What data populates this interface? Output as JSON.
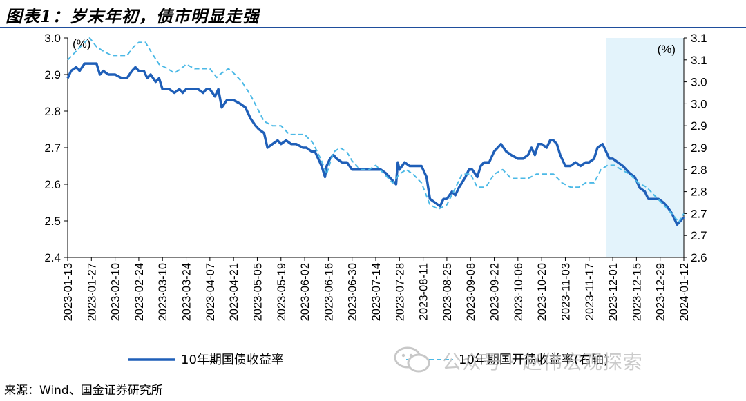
{
  "title": "图表1：岁末年初，债市明显走强",
  "source": "来源：Wind、国金证券研究所",
  "watermark": "公众号 · 赵伟宏观探索",
  "chart_data": {
    "type": "line",
    "left_unit": "(%)",
    "right_unit": "(%)",
    "left_ylim": [
      2.4,
      3.0
    ],
    "right_ylim": [
      2.6,
      3.1
    ],
    "left_ticks": [
      "2.4",
      "2.5",
      "2.6",
      "2.7",
      "2.8",
      "2.9",
      "3.0"
    ],
    "right_ticks": [
      "2.6",
      "2.7",
      "2.7",
      "2.8",
      "2.8",
      "2.9",
      "2.9",
      "3.0",
      "3.0",
      "3.1",
      "3.1"
    ],
    "x_ticks": [
      "2023-01-13",
      "2023-01-27",
      "2023-02-10",
      "2023-02-24",
      "2023-03-10",
      "2023-03-24",
      "2023-04-07",
      "2023-04-21",
      "2023-05-05",
      "2023-05-19",
      "2023-06-02",
      "2023-06-16",
      "2023-06-30",
      "2023-07-14",
      "2023-07-28",
      "2023-08-11",
      "2023-08-25",
      "2023-09-08",
      "2023-09-22",
      "2023-10-06",
      "2023-10-20",
      "2023-11-03",
      "2023-11-17",
      "2023-12-01",
      "2023-12-15",
      "2023-12-29",
      "2024-01-12"
    ],
    "highlight": {
      "from": "2023-11-27",
      "to": "2024-01-12",
      "color": "#e3f3fb"
    },
    "series": [
      {
        "name": "10年期国债收益率",
        "axis": "left",
        "color": "#1f5fb8",
        "style": "solid",
        "points": [
          [
            "2023-01-13",
            2.89
          ],
          [
            "2023-01-15",
            2.91
          ],
          [
            "2023-01-18",
            2.92
          ],
          [
            "2023-01-20",
            2.91
          ],
          [
            "2023-01-23",
            2.93
          ],
          [
            "2023-01-26",
            2.93
          ],
          [
            "2023-01-30",
            2.93
          ],
          [
            "2023-02-01",
            2.9
          ],
          [
            "2023-02-03",
            2.91
          ],
          [
            "2023-02-06",
            2.9
          ],
          [
            "2023-02-08",
            2.9
          ],
          [
            "2023-02-10",
            2.9
          ],
          [
            "2023-02-14",
            2.89
          ],
          [
            "2023-02-17",
            2.89
          ],
          [
            "2023-02-20",
            2.91
          ],
          [
            "2023-02-22",
            2.92
          ],
          [
            "2023-02-24",
            2.91
          ],
          [
            "2023-02-27",
            2.91
          ],
          [
            "2023-03-01",
            2.89
          ],
          [
            "2023-03-03",
            2.9
          ],
          [
            "2023-03-06",
            2.88
          ],
          [
            "2023-03-08",
            2.89
          ],
          [
            "2023-03-10",
            2.86
          ],
          [
            "2023-03-14",
            2.86
          ],
          [
            "2023-03-17",
            2.85
          ],
          [
            "2023-03-20",
            2.86
          ],
          [
            "2023-03-22",
            2.85
          ],
          [
            "2023-03-24",
            2.86
          ],
          [
            "2023-03-28",
            2.86
          ],
          [
            "2023-03-31",
            2.86
          ],
          [
            "2023-04-03",
            2.85
          ],
          [
            "2023-04-05",
            2.86
          ],
          [
            "2023-04-07",
            2.86
          ],
          [
            "2023-04-10",
            2.84
          ],
          [
            "2023-04-12",
            2.86
          ],
          [
            "2023-04-14",
            2.81
          ],
          [
            "2023-04-17",
            2.83
          ],
          [
            "2023-04-19",
            2.83
          ],
          [
            "2023-04-21",
            2.83
          ],
          [
            "2023-04-25",
            2.82
          ],
          [
            "2023-04-28",
            2.81
          ],
          [
            "2023-05-01",
            2.78
          ],
          [
            "2023-05-04",
            2.76
          ],
          [
            "2023-05-06",
            2.75
          ],
          [
            "2023-05-09",
            2.74
          ],
          [
            "2023-05-11",
            2.7
          ],
          [
            "2023-05-14",
            2.71
          ],
          [
            "2023-05-17",
            2.72
          ],
          [
            "2023-05-19",
            2.71
          ],
          [
            "2023-05-22",
            2.72
          ],
          [
            "2023-05-25",
            2.71
          ],
          [
            "2023-05-28",
            2.71
          ],
          [
            "2023-06-01",
            2.7
          ],
          [
            "2023-06-03",
            2.7
          ],
          [
            "2023-06-06",
            2.69
          ],
          [
            "2023-06-08",
            2.69
          ],
          [
            "2023-06-12",
            2.65
          ],
          [
            "2023-06-14",
            2.62
          ],
          [
            "2023-06-15",
            2.65
          ],
          [
            "2023-06-17",
            2.67
          ],
          [
            "2023-06-19",
            2.68
          ],
          [
            "2023-06-21",
            2.67
          ],
          [
            "2023-06-24",
            2.66
          ],
          [
            "2023-06-27",
            2.66
          ],
          [
            "2023-06-30",
            2.64
          ],
          [
            "2023-07-03",
            2.64
          ],
          [
            "2023-07-07",
            2.64
          ],
          [
            "2023-07-10",
            2.64
          ],
          [
            "2023-07-14",
            2.64
          ],
          [
            "2023-07-17",
            2.64
          ],
          [
            "2023-07-20",
            2.63
          ],
          [
            "2023-07-24",
            2.61
          ],
          [
            "2023-07-26",
            2.6
          ],
          [
            "2023-07-27",
            2.66
          ],
          [
            "2023-07-28",
            2.64
          ],
          [
            "2023-07-31",
            2.66
          ],
          [
            "2023-08-03",
            2.65
          ],
          [
            "2023-08-07",
            2.65
          ],
          [
            "2023-08-10",
            2.65
          ],
          [
            "2023-08-11",
            2.64
          ],
          [
            "2023-08-13",
            2.62
          ],
          [
            "2023-08-15",
            2.56
          ],
          [
            "2023-08-18",
            2.55
          ],
          [
            "2023-08-21",
            2.54
          ],
          [
            "2023-08-23",
            2.56
          ],
          [
            "2023-08-25",
            2.56
          ],
          [
            "2023-08-28",
            2.58
          ],
          [
            "2023-08-30",
            2.57
          ],
          [
            "2023-09-01",
            2.59
          ],
          [
            "2023-09-05",
            2.62
          ],
          [
            "2023-09-07",
            2.64
          ],
          [
            "2023-09-09",
            2.64
          ],
          [
            "2023-09-12",
            2.62
          ],
          [
            "2023-09-14",
            2.65
          ],
          [
            "2023-09-16",
            2.66
          ],
          [
            "2023-09-19",
            2.66
          ],
          [
            "2023-09-22",
            2.69
          ],
          [
            "2023-09-26",
            2.71
          ],
          [
            "2023-09-29",
            2.69
          ],
          [
            "2023-10-02",
            2.68
          ],
          [
            "2023-10-06",
            2.67
          ],
          [
            "2023-10-09",
            2.67
          ],
          [
            "2023-10-12",
            2.68
          ],
          [
            "2023-10-14",
            2.7
          ],
          [
            "2023-10-16",
            2.68
          ],
          [
            "2023-10-18",
            2.71
          ],
          [
            "2023-10-20",
            2.71
          ],
          [
            "2023-10-23",
            2.7
          ],
          [
            "2023-10-25",
            2.72
          ],
          [
            "2023-10-27",
            2.72
          ],
          [
            "2023-10-29",
            2.71
          ],
          [
            "2023-10-31",
            2.68
          ],
          [
            "2023-11-03",
            2.65
          ],
          [
            "2023-11-06",
            2.65
          ],
          [
            "2023-11-09",
            2.66
          ],
          [
            "2023-11-12",
            2.65
          ],
          [
            "2023-11-15",
            2.66
          ],
          [
            "2023-11-17",
            2.66
          ],
          [
            "2023-11-20",
            2.67
          ],
          [
            "2023-11-22",
            2.7
          ],
          [
            "2023-11-25",
            2.71
          ],
          [
            "2023-11-27",
            2.69
          ],
          [
            "2023-11-29",
            2.67
          ],
          [
            "2023-12-01",
            2.67
          ],
          [
            "2023-12-04",
            2.66
          ],
          [
            "2023-12-07",
            2.65
          ],
          [
            "2023-12-11",
            2.63
          ],
          [
            "2023-12-14",
            2.62
          ],
          [
            "2023-12-17",
            2.59
          ],
          [
            "2023-12-20",
            2.58
          ],
          [
            "2023-12-22",
            2.56
          ],
          [
            "2023-12-25",
            2.56
          ],
          [
            "2023-12-28",
            2.56
          ],
          [
            "2023-12-31",
            2.55
          ],
          [
            "2024-01-02",
            2.54
          ],
          [
            "2024-01-05",
            2.52
          ],
          [
            "2024-01-08",
            2.49
          ],
          [
            "2024-01-10",
            2.5
          ],
          [
            "2024-01-12",
            2.51
          ]
        ]
      },
      {
        "name": "10年期国开债收益率(右轴)",
        "axis": "right",
        "color": "#4cb9e6",
        "style": "dashed",
        "points": [
          [
            "2023-01-13",
            3.05
          ],
          [
            "2023-01-18",
            3.07
          ],
          [
            "2023-01-23",
            3.09
          ],
          [
            "2023-01-26",
            3.1
          ],
          [
            "2023-01-30",
            3.08
          ],
          [
            "2023-02-03",
            3.07
          ],
          [
            "2023-02-08",
            3.06
          ],
          [
            "2023-02-13",
            3.06
          ],
          [
            "2023-02-17",
            3.06
          ],
          [
            "2023-02-21",
            3.08
          ],
          [
            "2023-02-24",
            3.09
          ],
          [
            "2023-02-28",
            3.09
          ],
          [
            "2023-03-03",
            3.07
          ],
          [
            "2023-03-08",
            3.04
          ],
          [
            "2023-03-13",
            3.03
          ],
          [
            "2023-03-17",
            3.02
          ],
          [
            "2023-03-21",
            3.03
          ],
          [
            "2023-03-24",
            3.04
          ],
          [
            "2023-03-29",
            3.03
          ],
          [
            "2023-04-03",
            3.03
          ],
          [
            "2023-04-07",
            3.03
          ],
          [
            "2023-04-11",
            3.01
          ],
          [
            "2023-04-14",
            3.02
          ],
          [
            "2023-04-18",
            3.03
          ],
          [
            "2023-04-21",
            3.02
          ],
          [
            "2023-04-26",
            3.0
          ],
          [
            "2023-05-01",
            2.97
          ],
          [
            "2023-05-05",
            2.94
          ],
          [
            "2023-05-09",
            2.91
          ],
          [
            "2023-05-14",
            2.9
          ],
          [
            "2023-05-19",
            2.9
          ],
          [
            "2023-05-24",
            2.88
          ],
          [
            "2023-05-29",
            2.88
          ],
          [
            "2023-06-02",
            2.88
          ],
          [
            "2023-06-07",
            2.86
          ],
          [
            "2023-06-12",
            2.82
          ],
          [
            "2023-06-15",
            2.79
          ],
          [
            "2023-06-19",
            2.84
          ],
          [
            "2023-06-23",
            2.85
          ],
          [
            "2023-06-27",
            2.84
          ],
          [
            "2023-06-30",
            2.82
          ],
          [
            "2023-07-05",
            2.8
          ],
          [
            "2023-07-10",
            2.8
          ],
          [
            "2023-07-14",
            2.81
          ],
          [
            "2023-07-19",
            2.79
          ],
          [
            "2023-07-24",
            2.77
          ],
          [
            "2023-07-28",
            2.79
          ],
          [
            "2023-08-01",
            2.8
          ],
          [
            "2023-08-05",
            2.79
          ],
          [
            "2023-08-10",
            2.77
          ],
          [
            "2023-08-15",
            2.72
          ],
          [
            "2023-08-20",
            2.71
          ],
          [
            "2023-08-25",
            2.72
          ],
          [
            "2023-08-29",
            2.75
          ],
          [
            "2023-09-03",
            2.79
          ],
          [
            "2023-09-08",
            2.79
          ],
          [
            "2023-09-12",
            2.76
          ],
          [
            "2023-09-17",
            2.76
          ],
          [
            "2023-09-22",
            2.79
          ],
          [
            "2023-09-27",
            2.8
          ],
          [
            "2023-10-02",
            2.78
          ],
          [
            "2023-10-07",
            2.78
          ],
          [
            "2023-10-12",
            2.78
          ],
          [
            "2023-10-17",
            2.79
          ],
          [
            "2023-10-22",
            2.79
          ],
          [
            "2023-10-27",
            2.79
          ],
          [
            "2023-11-01",
            2.77
          ],
          [
            "2023-11-06",
            2.76
          ],
          [
            "2023-11-11",
            2.76
          ],
          [
            "2023-11-15",
            2.77
          ],
          [
            "2023-11-20",
            2.77
          ],
          [
            "2023-11-24",
            2.8
          ],
          [
            "2023-11-28",
            2.81
          ],
          [
            "2023-12-02",
            2.81
          ],
          [
            "2023-12-06",
            2.8
          ],
          [
            "2023-12-11",
            2.79
          ],
          [
            "2023-12-16",
            2.77
          ],
          [
            "2023-12-21",
            2.76
          ],
          [
            "2023-12-26",
            2.74
          ],
          [
            "2023-12-31",
            2.72
          ],
          [
            "2024-01-05",
            2.7
          ],
          [
            "2024-01-09",
            2.68
          ],
          [
            "2024-01-12",
            2.7
          ]
        ]
      }
    ]
  }
}
